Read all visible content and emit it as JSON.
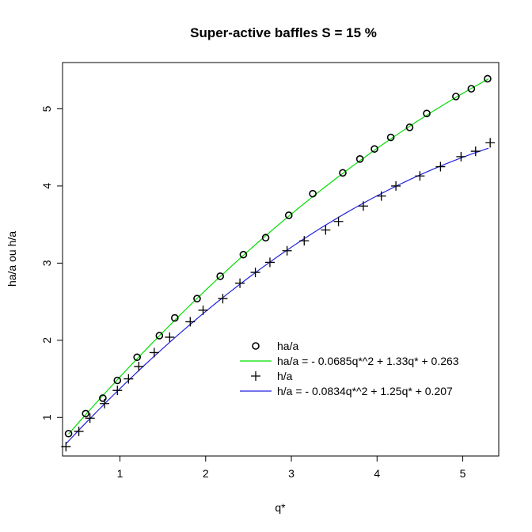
{
  "chart_data": {
    "type": "scatter",
    "title": "Super-active baffles S = 15 %",
    "xlabel": "q*",
    "ylabel": "ha/a ou h/a",
    "xlim": [
      0.33,
      5.42
    ],
    "ylim": [
      0.5,
      5.6
    ],
    "x_ticks": [
      1,
      2,
      3,
      4,
      5
    ],
    "y_ticks": [
      1,
      2,
      3,
      4,
      5
    ],
    "grid": false,
    "legend_position": "bottom-right",
    "series": [
      {
        "name": "ha/a",
        "marker": "circle",
        "color": "#000000",
        "x": [
          0.4,
          0.6,
          0.8,
          0.97,
          1.2,
          1.46,
          1.64,
          1.9,
          2.17,
          2.44,
          2.7,
          2.97,
          3.25,
          3.6,
          3.8,
          3.97,
          4.16,
          4.38,
          4.58,
          4.92,
          5.1,
          5.29
        ],
        "y": [
          0.79,
          1.05,
          1.25,
          1.48,
          1.78,
          2.06,
          2.29,
          2.54,
          2.83,
          3.11,
          3.33,
          3.62,
          3.9,
          4.17,
          4.35,
          4.48,
          4.63,
          4.76,
          4.94,
          5.16,
          5.26,
          5.39
        ]
      },
      {
        "name": "h/a",
        "marker": "plus",
        "color": "#000000",
        "x": [
          0.37,
          0.52,
          0.65,
          0.82,
          0.97,
          1.1,
          1.22,
          1.4,
          1.58,
          1.82,
          1.97,
          2.2,
          2.4,
          2.58,
          2.75,
          2.95,
          3.15,
          3.4,
          3.55,
          3.84,
          4.05,
          4.22,
          4.5,
          4.74,
          4.98,
          5.15,
          5.32
        ],
        "y": [
          0.62,
          0.82,
          0.99,
          1.18,
          1.35,
          1.5,
          1.66,
          1.84,
          2.04,
          2.24,
          2.39,
          2.54,
          2.74,
          2.88,
          3.01,
          3.16,
          3.29,
          3.43,
          3.54,
          3.74,
          3.87,
          4.0,
          4.13,
          4.25,
          4.38,
          4.45,
          4.56
        ]
      }
    ],
    "fits": [
      {
        "name": "ha/a = - 0.0685q*^2 + 1.33q* + 0.263",
        "color": "#00dd00",
        "coefficients": [
          -0.0685,
          1.33,
          0.263
        ],
        "x_range": [
          0.4,
          5.3
        ]
      },
      {
        "name": "h/a = - 0.0834q*^2 + 1.25q* + 0.207",
        "color": "#2222dd",
        "coefficients": [
          -0.0834,
          1.25,
          0.207
        ],
        "x_range": [
          0.37,
          5.3
        ]
      }
    ],
    "legend": [
      {
        "label": "ha/a",
        "symbol": "circle",
        "color": "#000000"
      },
      {
        "label": "ha/a = - 0.0685q*^2 + 1.33q* + 0.263",
        "symbol": "line",
        "color": "#00dd00"
      },
      {
        "label": "h/a",
        "symbol": "plus",
        "color": "#000000"
      },
      {
        "label": "h/a = - 0.0834q*^2 + 1.25q* + 0.207",
        "symbol": "line",
        "color": "#2222dd"
      }
    ]
  }
}
